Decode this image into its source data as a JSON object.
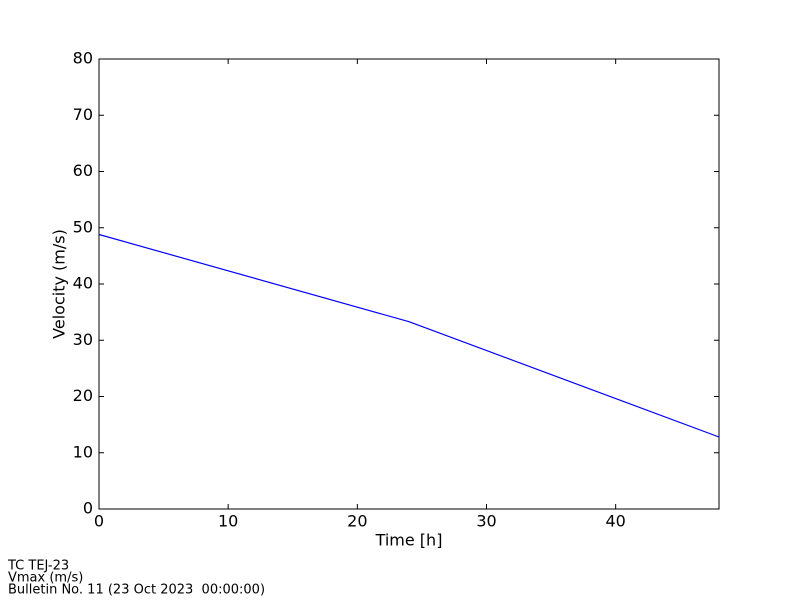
{
  "chart_data": {
    "type": "line",
    "x_label": "Time [h]",
    "y_label": "Velocity (m/s)",
    "x": [
      0,
      24,
      48
    ],
    "series": [
      {
        "name": "Vmax",
        "color": "#0000ff",
        "values": [
          48.8,
          33.3,
          12.8
        ]
      }
    ],
    "xlim": [
      0,
      48
    ],
    "xticks": [
      0,
      10,
      20,
      30,
      40
    ],
    "ylim": [
      0,
      80
    ],
    "yticks": [
      0,
      10,
      20,
      30,
      40,
      50,
      60,
      70,
      80
    ],
    "grid": false
  },
  "footer": {
    "lines": [
      "TC TEJ-23",
      "Vmax (m/s)",
      "Bulletin No. 11 (23 Oct 2023  00:00:00)"
    ]
  }
}
